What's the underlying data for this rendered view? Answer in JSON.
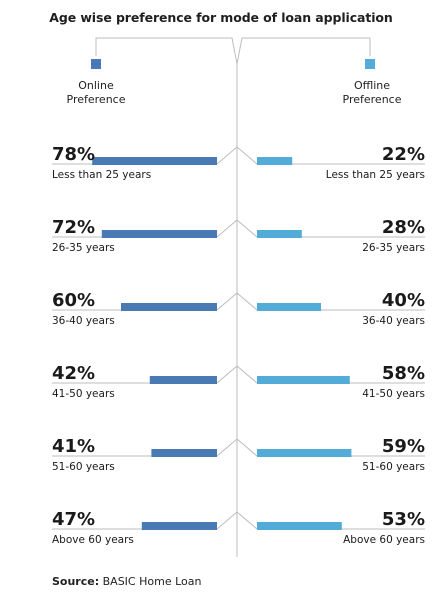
{
  "chart_data": {
    "type": "bar",
    "title": "Age wise preference for mode of loan application",
    "layout": "butterfly",
    "unit": "%",
    "xlim": [
      0,
      100
    ],
    "series": [
      {
        "name": "Online Preference",
        "name_lines": [
          "Online",
          "Preference"
        ],
        "side": "left",
        "color": "#4a7ab4",
        "values": [
          78,
          72,
          60,
          42,
          41,
          47
        ]
      },
      {
        "name": "Offline Preference",
        "name_lines": [
          "Offline",
          "Preference"
        ],
        "side": "right",
        "color": "#53abd8",
        "values": [
          22,
          28,
          40,
          58,
          59,
          53
        ]
      }
    ],
    "categories": [
      "Less than 25 years",
      "26-35 years",
      "36-40 years",
      "41-50 years",
      "51-60 years",
      "Above 60 years"
    ]
  },
  "source": {
    "label": "Source:",
    "text": "BASIC Home Loan"
  },
  "colors": {
    "online": "#4a7ab4",
    "offline": "#53abd8",
    "line": "#bdbdbd",
    "text": "#1a1a1a"
  }
}
